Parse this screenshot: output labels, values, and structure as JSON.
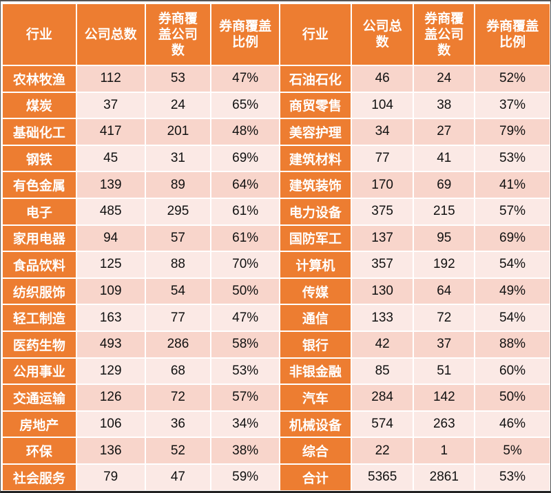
{
  "table": {
    "headers": [
      "行业",
      "公司总数",
      "券商覆盖公司数",
      "券商覆盖比例",
      "行业",
      "公司总数",
      "券商覆盖公司数",
      "券商覆盖比例"
    ],
    "header_lines": [
      [
        "行业"
      ],
      [
        "公司总数"
      ],
      [
        "券商覆",
        "盖公司",
        "数"
      ],
      [
        "券商覆盖",
        "比例"
      ],
      [
        "行业"
      ],
      [
        "公司总",
        "数"
      ],
      [
        "券商覆",
        "盖公司",
        "数"
      ],
      [
        "券商覆盖",
        "比例"
      ]
    ],
    "left": [
      {
        "industry": "农林牧渔",
        "total": "112",
        "covered": "53",
        "ratio": "47%"
      },
      {
        "industry": "煤炭",
        "total": "37",
        "covered": "24",
        "ratio": "65%"
      },
      {
        "industry": "基础化工",
        "total": "417",
        "covered": "201",
        "ratio": "48%"
      },
      {
        "industry": "钢铁",
        "total": "45",
        "covered": "31",
        "ratio": "69%"
      },
      {
        "industry": "有色金属",
        "total": "139",
        "covered": "89",
        "ratio": "64%"
      },
      {
        "industry": "电子",
        "total": "485",
        "covered": "295",
        "ratio": "61%"
      },
      {
        "industry": "家用电器",
        "total": "94",
        "covered": "57",
        "ratio": "61%"
      },
      {
        "industry": "食品饮料",
        "total": "125",
        "covered": "88",
        "ratio": "70%"
      },
      {
        "industry": "纺织服饰",
        "total": "109",
        "covered": "54",
        "ratio": "50%"
      },
      {
        "industry": "轻工制造",
        "total": "163",
        "covered": "77",
        "ratio": "47%"
      },
      {
        "industry": "医药生物",
        "total": "493",
        "covered": "286",
        "ratio": "58%"
      },
      {
        "industry": "公用事业",
        "total": "129",
        "covered": "68",
        "ratio": "53%"
      },
      {
        "industry": "交通运输",
        "total": "126",
        "covered": "72",
        "ratio": "57%"
      },
      {
        "industry": "房地产",
        "total": "106",
        "covered": "36",
        "ratio": "34%"
      },
      {
        "industry": "环保",
        "total": "136",
        "covered": "52",
        "ratio": "38%"
      },
      {
        "industry": "社会服务",
        "total": "79",
        "covered": "47",
        "ratio": "59%"
      }
    ],
    "right": [
      {
        "industry": "石油石化",
        "total": "46",
        "covered": "24",
        "ratio": "52%"
      },
      {
        "industry": "商贸零售",
        "total": "104",
        "covered": "38",
        "ratio": "37%"
      },
      {
        "industry": "美容护理",
        "total": "34",
        "covered": "27",
        "ratio": "79%"
      },
      {
        "industry": "建筑材料",
        "total": "77",
        "covered": "41",
        "ratio": "53%"
      },
      {
        "industry": "建筑装饰",
        "total": "170",
        "covered": "69",
        "ratio": "41%"
      },
      {
        "industry": "电力设备",
        "total": "375",
        "covered": "215",
        "ratio": "57%"
      },
      {
        "industry": "国防军工",
        "total": "137",
        "covered": "95",
        "ratio": "69%"
      },
      {
        "industry": "计算机",
        "total": "357",
        "covered": "192",
        "ratio": "54%"
      },
      {
        "industry": "传媒",
        "total": "130",
        "covered": "64",
        "ratio": "49%"
      },
      {
        "industry": "通信",
        "total": "133",
        "covered": "72",
        "ratio": "54%"
      },
      {
        "industry": "银行",
        "total": "42",
        "covered": "37",
        "ratio": "88%"
      },
      {
        "industry": "非银金融",
        "total": "85",
        "covered": "51",
        "ratio": "60%"
      },
      {
        "industry": "汽车",
        "total": "284",
        "covered": "142",
        "ratio": "50%"
      },
      {
        "industry": "机械设备",
        "total": "574",
        "covered": "263",
        "ratio": "46%"
      },
      {
        "industry": "综合",
        "total": "22",
        "covered": "1",
        "ratio": "5%"
      },
      {
        "industry": "合计",
        "total": "5365",
        "covered": "2861",
        "ratio": "53%"
      }
    ]
  },
  "colors": {
    "header_bg": "#ed7d31",
    "header_text": "#ffffff",
    "row_odd_bg": "#f8d5cb",
    "row_even_bg": "#fbe9e5"
  }
}
